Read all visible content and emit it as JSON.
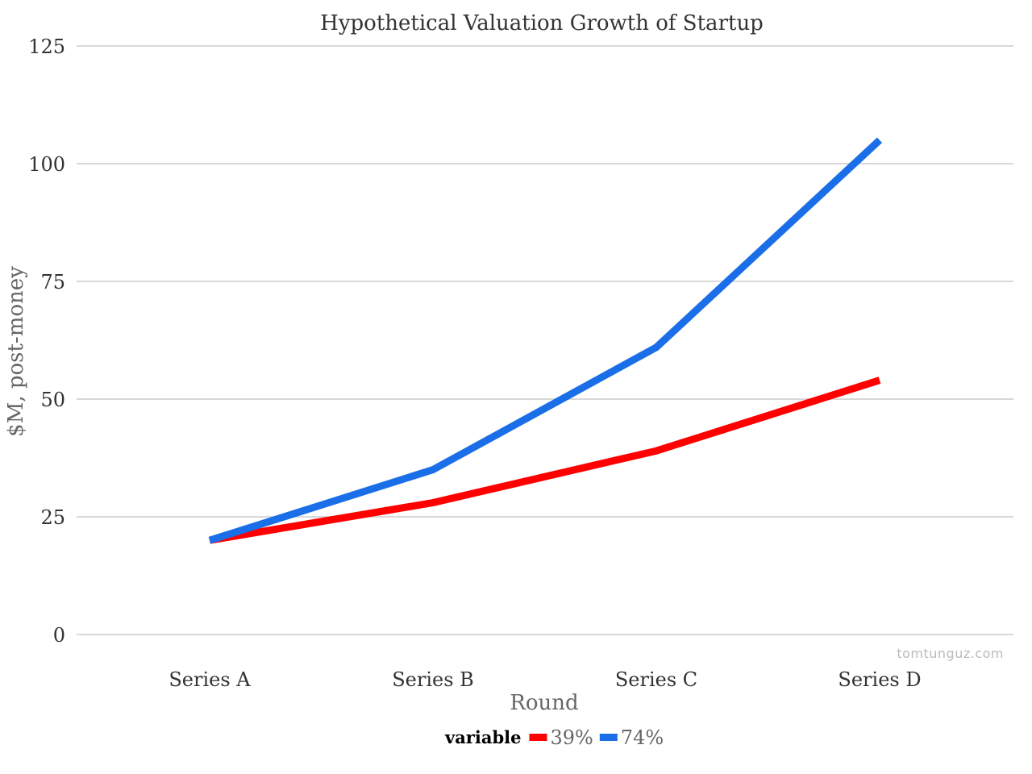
{
  "chart_data": {
    "type": "line",
    "title": "Hypothetical Valuation Growth of Startup",
    "xlabel": "Round",
    "ylabel": "$M, post-money",
    "categories": [
      "Series A",
      "Series B",
      "Series C",
      "Series D"
    ],
    "ylim": [
      0,
      125
    ],
    "yticks": [
      0,
      25,
      50,
      75,
      100,
      125
    ],
    "grid": true,
    "legend": {
      "title": "variable",
      "placement": "bottom"
    },
    "series": [
      {
        "name": "39%",
        "color": "#ff0000",
        "values": [
          20,
          28,
          39,
          54
        ]
      },
      {
        "name": "74%",
        "color": "#1a6ee8",
        "values": [
          20,
          35,
          61,
          105
        ]
      }
    ]
  },
  "watermark": "tomtunguz.com"
}
